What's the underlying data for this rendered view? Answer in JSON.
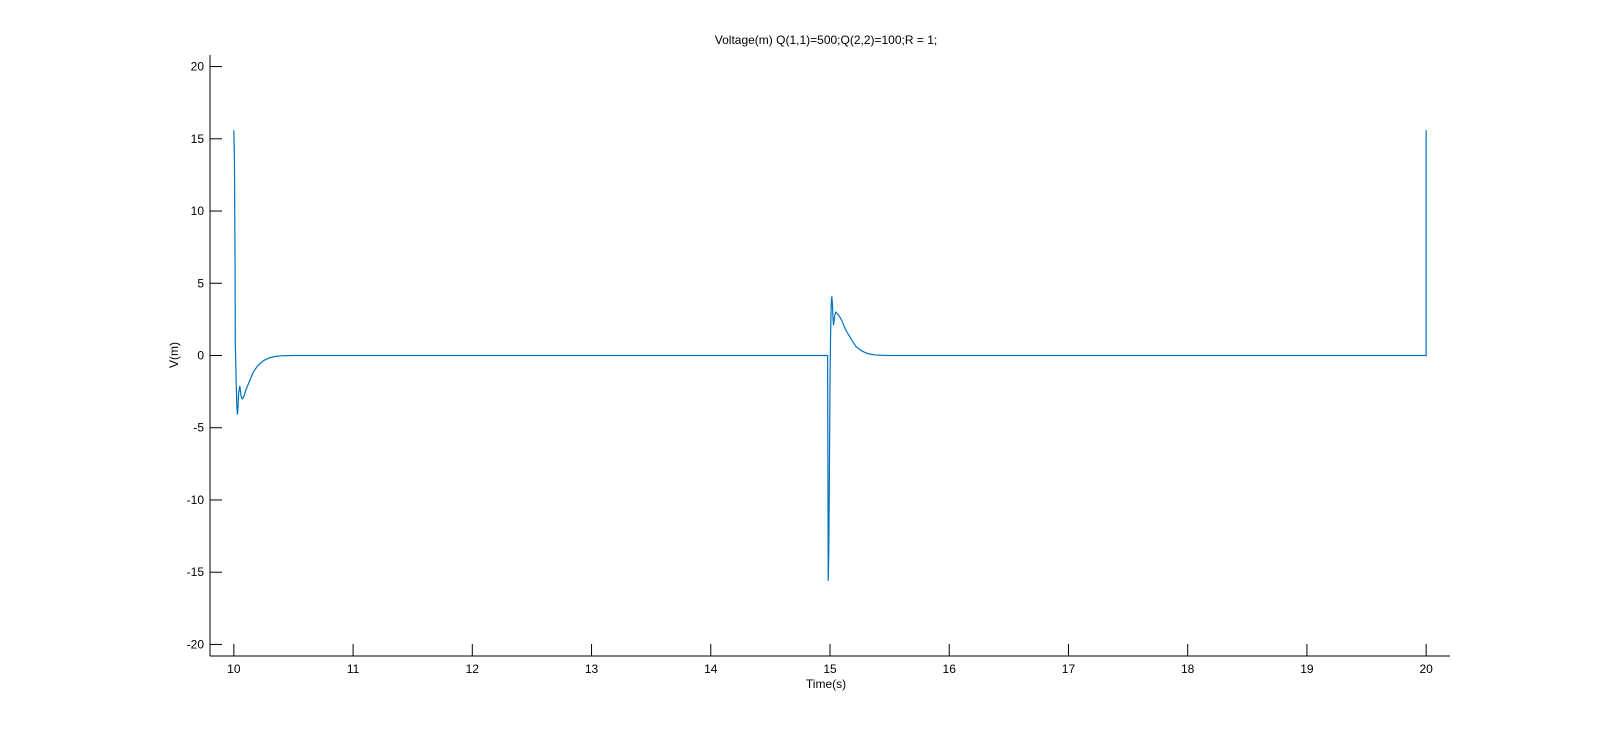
{
  "chart_data": {
    "type": "line",
    "title": "Voltage(m)  Q(1,1)=500;Q(2,2)=100;R = 1;",
    "xlabel": "Time(s)",
    "ylabel": "V(m)",
    "xlim": [
      9.8,
      20.2
    ],
    "ylim": [
      -20.8,
      20.8
    ],
    "xticks": [
      10,
      11,
      12,
      13,
      14,
      15,
      16,
      17,
      18,
      19,
      20
    ],
    "yticks": [
      -20,
      -15,
      -10,
      -5,
      0,
      5,
      10,
      15,
      20
    ],
    "grid": false,
    "series": [
      {
        "color": "#0072BD",
        "x": [
          10.0,
          10.005,
          10.01,
          10.012,
          10.02,
          10.025,
          10.03,
          10.035,
          10.04,
          10.05,
          10.06,
          10.07,
          10.08,
          10.09,
          10.1,
          10.13,
          10.16,
          10.2,
          10.25,
          10.3,
          10.35,
          10.4,
          10.45,
          10.5,
          10.6,
          10.8,
          11.0,
          12.0,
          13.0,
          14.0,
          14.98,
          14.985,
          14.99,
          14.995,
          15.0,
          15.005,
          15.01,
          15.015,
          15.02,
          15.025,
          15.03,
          15.04,
          15.05,
          15.06,
          15.08,
          15.1,
          15.13,
          15.18,
          15.22,
          15.27,
          15.32,
          15.38,
          15.45,
          15.52,
          15.6,
          15.8,
          16.0,
          17.0,
          18.0,
          19.0,
          19.98,
          20.0,
          20.0
        ],
        "y": [
          15.6,
          13.5,
          6.5,
          1.0,
          -2.0,
          -3.5,
          -4.1,
          -3.6,
          -2.6,
          -2.1,
          -2.8,
          -3.0,
          -2.9,
          -2.7,
          -2.4,
          -1.8,
          -1.2,
          -0.7,
          -0.35,
          -0.15,
          -0.06,
          -0.02,
          -0.01,
          0.0,
          0.0,
          0.0,
          0.0,
          0.0,
          0.0,
          0.0,
          0.0,
          -15.6,
          -13.5,
          -8.0,
          -2.0,
          1.5,
          3.5,
          4.1,
          3.6,
          2.6,
          2.1,
          2.8,
          3.0,
          2.9,
          2.7,
          2.4,
          1.8,
          1.1,
          0.6,
          0.3,
          0.12,
          0.04,
          0.01,
          0.0,
          0.0,
          0.0,
          0.0,
          0.0,
          0.0,
          0.0,
          0.0,
          0.0,
          15.6
        ]
      }
    ]
  }
}
